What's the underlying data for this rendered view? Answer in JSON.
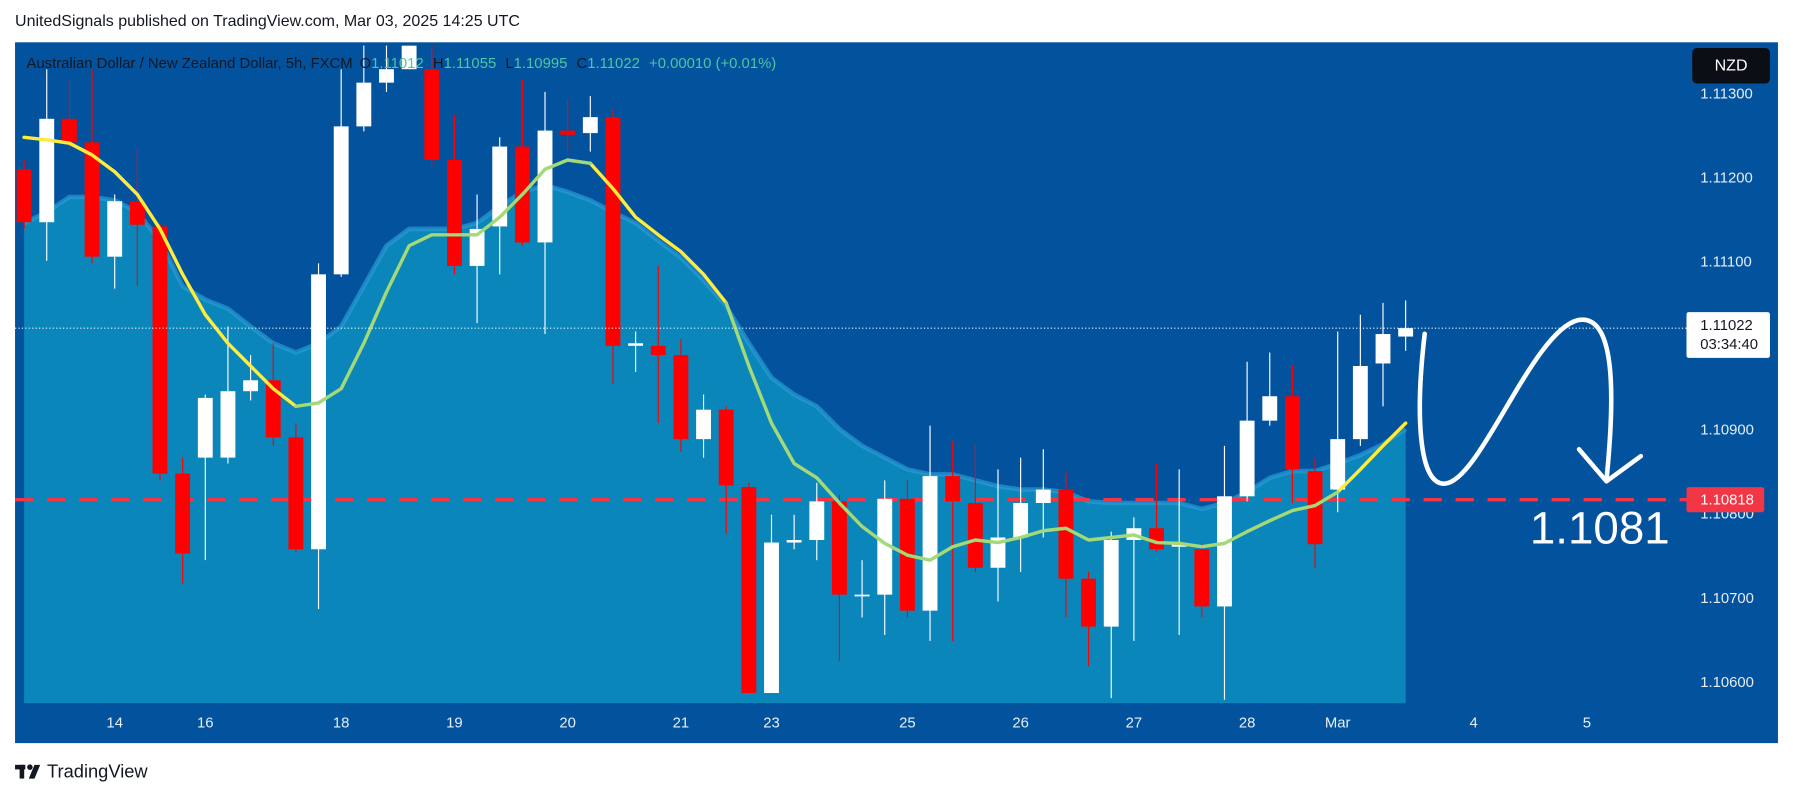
{
  "header": {
    "text": "UnitedSignals published on TradingView.com, Mar 03, 2025 14:25 UTC"
  },
  "footer": {
    "brand": "TradingView"
  },
  "chart_data": {
    "type": "candlestick",
    "title": "Australian Dollar / New Zealand Dollar, 5h, FXCM",
    "ohlc_labels": [
      "O",
      "H",
      "L",
      "C"
    ],
    "change": "+0.00010 (+0.01%)",
    "currency": "NZD",
    "countdown": "03:34:40",
    "annotation": "1.1081",
    "up_color": "#ffffff",
    "down_color": "#ff0000",
    "open": [
      1.11211,
      1.11148,
      1.11271,
      1.11243,
      1.11107,
      1.11173,
      1.11143,
      1.10849,
      1.10868,
      1.10868,
      1.10947,
      1.1096,
      1.10892,
      1.10759,
      1.11086,
      1.11262,
      1.11314,
      1.1133,
      1.1133,
      1.11222,
      1.11096,
      1.11143,
      1.11238,
      1.11124,
      1.11257,
      1.11254,
      1.11273,
      1.11001,
      1.11001,
      1.1099,
      1.1089,
      1.10925,
      1.10833,
      1.10588,
      1.10767,
      1.1077,
      1.10816,
      1.10705,
      1.10705,
      1.10819,
      1.10686,
      1.10846,
      1.10814,
      1.10737,
      1.10773,
      1.10814,
      1.1083,
      1.10724,
      1.10667,
      1.1077,
      1.10784,
      1.10762,
      1.10759,
      1.10691,
      1.10822,
      1.10912,
      1.10941,
      1.10852,
      1.1083,
      1.1089,
      1.1098,
      1.11012
    ],
    "high": [
      1.11222,
      1.1133,
      1.11317,
      1.1133,
      1.11181,
      1.11235,
      1.11147,
      1.10868,
      1.10943,
      1.11024,
      1.1099,
      1.11004,
      1.10909,
      1.11099,
      1.1133,
      1.11358,
      1.11358,
      1.11358,
      1.11358,
      1.11276,
      1.11181,
      1.11249,
      1.11317,
      1.11303,
      1.11295,
      1.11298,
      1.11283,
      1.11018,
      1.11096,
      1.11009,
      1.10943,
      1.10929,
      1.10838,
      1.108,
      1.108,
      1.10838,
      1.10824,
      1.10746,
      1.10841,
      1.10841,
      1.10906,
      1.10888,
      1.10884,
      1.10854,
      1.10868,
      1.10878,
      1.10852,
      1.10732,
      1.1078,
      1.10797,
      1.10861,
      1.10854,
      1.10766,
      1.10882,
      1.10982,
      1.10993,
      1.10977,
      1.10868,
      1.11018,
      1.11038,
      1.11052,
      1.11055
    ],
    "low": [
      1.1114,
      1.11102,
      1.11235,
      1.11099,
      1.11069,
      1.11072,
      1.10841,
      1.10718,
      1.10746,
      1.10861,
      1.10936,
      1.10882,
      1.10756,
      1.10688,
      1.11083,
      1.11256,
      1.11303,
      1.1133,
      1.11215,
      1.11086,
      1.11028,
      1.11086,
      1.1112,
      1.11015,
      1.11232,
      1.11232,
      1.10956,
      1.1097,
      1.10909,
      1.10875,
      1.10868,
      1.10777,
      1.10588,
      1.10588,
      1.10759,
      1.10746,
      1.10626,
      1.10678,
      1.10657,
      1.10678,
      1.1065,
      1.1065,
      1.10732,
      1.10697,
      1.10732,
      1.10773,
      1.10678,
      1.1062,
      1.10582,
      1.1065,
      1.10756,
      1.10657,
      1.10678,
      1.1058,
      1.10816,
      1.10906,
      1.10814,
      1.10737,
      1.10803,
      1.10882,
      1.10929,
      1.10995
    ],
    "close": [
      1.11148,
      1.11271,
      1.11243,
      1.11107,
      1.11173,
      1.11145,
      1.10849,
      1.10754,
      1.10939,
      1.10947,
      1.1096,
      1.10892,
      1.10759,
      1.11086,
      1.11262,
      1.11314,
      1.1133,
      1.11358,
      1.11222,
      1.11096,
      1.1114,
      1.11238,
      1.11124,
      1.11257,
      1.11252,
      1.11273,
      1.11001,
      1.11004,
      1.1099,
      1.1089,
      1.10925,
      1.10835,
      1.10588,
      1.10767,
      1.1077,
      1.10816,
      1.10705,
      1.10705,
      1.10819,
      1.10686,
      1.10846,
      1.10816,
      1.10737,
      1.10773,
      1.10814,
      1.1083,
      1.10724,
      1.10667,
      1.1077,
      1.10784,
      1.10759,
      1.10765,
      1.10691,
      1.10822,
      1.10912,
      1.10941,
      1.10854,
      1.10765,
      1.1089,
      1.10977,
      1.11015,
      1.11022
    ],
    "area": {
      "color": "#0a86ba",
      "edge": "#2a9bd4",
      "values": [
        1.11147,
        1.1116,
        1.11178,
        1.11178,
        1.11174,
        1.1116,
        1.11126,
        1.11072,
        1.11056,
        1.11045,
        1.11024,
        1.11004,
        1.10993,
        1.11004,
        1.11024,
        1.11072,
        1.1112,
        1.1114,
        1.1114,
        1.1114,
        1.11147,
        1.11167,
        1.11184,
        1.11192,
        1.11184,
        1.11174,
        1.1116,
        1.11147,
        1.11126,
        1.11106,
        1.11079,
        1.11048,
        1.11004,
        1.10963,
        1.10943,
        1.10929,
        1.10902,
        1.10882,
        1.10868,
        1.10854,
        1.10848,
        1.10848,
        1.10841,
        1.10834,
        1.1083,
        1.1083,
        1.10827,
        1.10816,
        1.10814,
        1.10814,
        1.10814,
        1.10814,
        1.10807,
        1.10814,
        1.10827,
        1.10844,
        1.10852,
        1.10852,
        1.10861,
        1.10871,
        1.10884,
        1.10902
      ]
    },
    "series": [
      {
        "color": "#ffeb3b",
        "values": [
          1.11249,
          1.11246,
          1.11242,
          1.11228,
          1.11208,
          1.11181,
          1.1114,
          1.11086,
          1.11038,
          1.11004,
          1.10977,
          1.1095,
          1.10929,
          null,
          null,
          null,
          null,
          null,
          null,
          null,
          null,
          null,
          null,
          null,
          null,
          1.11218,
          1.11188,
          1.11154,
          1.11133,
          1.11113,
          1.11086,
          1.11052,
          null,
          null,
          null,
          null,
          null,
          null,
          null,
          null,
          null,
          null,
          null,
          null,
          null,
          null,
          null,
          null,
          null,
          null,
          null,
          null,
          null,
          null,
          null,
          null,
          null,
          null,
          1.10827,
          1.10854,
          1.10882,
          1.10909
        ]
      },
      {
        "color": "#a3d977",
        "values": [
          null,
          null,
          null,
          null,
          null,
          null,
          null,
          null,
          null,
          null,
          null,
          null,
          1.10929,
          1.10933,
          1.1095,
          1.11004,
          1.11065,
          1.1112,
          1.11133,
          1.11133,
          1.11133,
          1.11154,
          1.11181,
          1.11211,
          1.11222,
          1.11218,
          null,
          null,
          null,
          null,
          null,
          1.11052,
          1.10977,
          1.10909,
          1.10861,
          1.10844,
          1.10814,
          1.10786,
          1.10766,
          1.10752,
          1.10746,
          1.10762,
          1.1077,
          1.10767,
          1.10773,
          1.10781,
          1.10784,
          1.1077,
          1.10773,
          1.10776,
          1.10767,
          1.10766,
          1.10762,
          1.10766,
          1.1078,
          1.10793,
          1.10805,
          1.10811,
          1.10827,
          null,
          null,
          null
        ]
      }
    ],
    "hline": {
      "value": 1.10818,
      "color": "#f23645"
    },
    "ylim": [
      1.10576,
      1.11362
    ],
    "yticks": [
      {
        "value": 1.106,
        "label": "1.10600"
      },
      {
        "value": 1.107,
        "label": "1.10700"
      },
      {
        "value": 1.108,
        "label": "1.10800"
      },
      {
        "value": 1.109,
        "label": "1.10900"
      },
      {
        "value": 1.111,
        "label": "1.11100"
      },
      {
        "value": 1.112,
        "label": "1.11200"
      },
      {
        "value": 1.113,
        "label": "1.11300"
      }
    ],
    "xlim": [
      -0.4,
      73.4
    ],
    "xticks": [
      {
        "value": 4,
        "label": "14"
      },
      {
        "value": 8,
        "label": "16"
      },
      {
        "value": 14,
        "label": "18"
      },
      {
        "value": 19,
        "label": "19"
      },
      {
        "value": 24,
        "label": "20"
      },
      {
        "value": 29,
        "label": "21"
      },
      {
        "value": 33,
        "label": "23"
      },
      {
        "value": 39,
        "label": "25"
      },
      {
        "value": 44,
        "label": "26"
      },
      {
        "value": 49,
        "label": "27"
      },
      {
        "value": 54,
        "label": "28"
      },
      {
        "value": 58,
        "label": "Mar"
      },
      {
        "value": 64,
        "label": "4"
      },
      {
        "value": 69,
        "label": "5"
      }
    ]
  }
}
